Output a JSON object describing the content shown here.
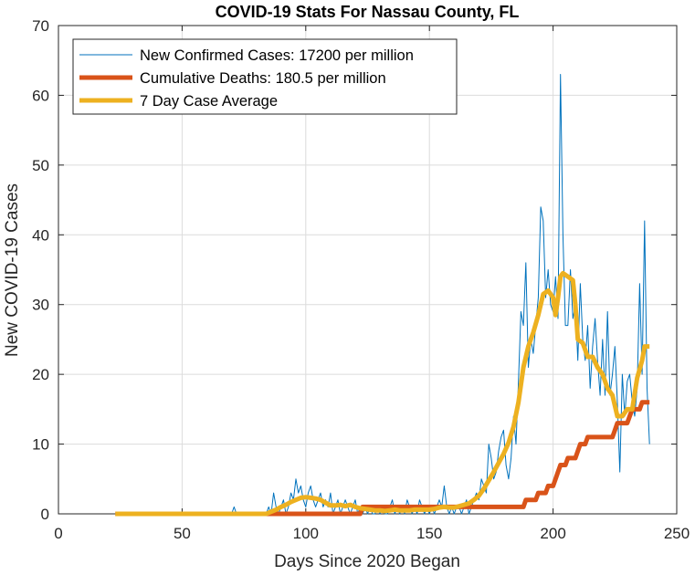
{
  "chart_data": {
    "type": "line",
    "title": "COVID-19 Stats For Nassau County, FL",
    "xlabel": "Days Since 2020 Began",
    "ylabel": "New COVID-19 Cases",
    "xlim": [
      0,
      250
    ],
    "ylim": [
      0,
      70
    ],
    "x_ticks": [
      0,
      50,
      100,
      150,
      200,
      250
    ],
    "y_ticks": [
      0,
      10,
      20,
      30,
      40,
      50,
      60,
      70
    ],
    "grid": true,
    "legend_position": "top-left",
    "series": [
      {
        "name": "New Confirmed Cases: 17200 per million",
        "color": "#0072BD",
        "style": "thin",
        "points": [
          [
            23,
            0
          ],
          [
            60,
            0
          ],
          [
            70,
            0
          ],
          [
            71,
            1
          ],
          [
            72,
            0
          ],
          [
            80,
            0
          ],
          [
            84,
            0
          ],
          [
            85,
            1
          ],
          [
            86,
            0
          ],
          [
            87,
            3
          ],
          [
            88,
            1
          ],
          [
            89,
            0
          ],
          [
            90,
            1
          ],
          [
            91,
            2
          ],
          [
            92,
            0
          ],
          [
            93,
            1
          ],
          [
            94,
            3
          ],
          [
            95,
            2
          ],
          [
            96,
            5
          ],
          [
            97,
            3
          ],
          [
            98,
            4
          ],
          [
            99,
            2
          ],
          [
            100,
            1
          ],
          [
            101,
            3
          ],
          [
            102,
            4
          ],
          [
            103,
            2
          ],
          [
            104,
            1
          ],
          [
            105,
            2
          ],
          [
            106,
            3
          ],
          [
            107,
            1
          ],
          [
            108,
            2
          ],
          [
            109,
            1
          ],
          [
            110,
            3
          ],
          [
            111,
            0
          ],
          [
            112,
            1
          ],
          [
            113,
            2
          ],
          [
            114,
            0
          ],
          [
            115,
            1
          ],
          [
            116,
            2
          ],
          [
            117,
            1
          ],
          [
            118,
            0
          ],
          [
            119,
            1
          ],
          [
            120,
            2
          ],
          [
            121,
            0
          ],
          [
            122,
            1
          ],
          [
            123,
            0
          ],
          [
            124,
            1
          ],
          [
            125,
            0
          ],
          [
            126,
            1
          ],
          [
            127,
            0
          ],
          [
            128,
            0
          ],
          [
            129,
            1
          ],
          [
            130,
            0
          ],
          [
            131,
            1
          ],
          [
            132,
            0
          ],
          [
            133,
            0
          ],
          [
            134,
            1
          ],
          [
            135,
            2
          ],
          [
            136,
            0
          ],
          [
            137,
            1
          ],
          [
            138,
            0
          ],
          [
            139,
            1
          ],
          [
            140,
            0
          ],
          [
            141,
            2
          ],
          [
            142,
            1
          ],
          [
            143,
            0
          ],
          [
            144,
            1
          ],
          [
            145,
            0
          ],
          [
            146,
            2
          ],
          [
            147,
            1
          ],
          [
            148,
            0
          ],
          [
            149,
            1
          ],
          [
            150,
            0
          ],
          [
            151,
            1
          ],
          [
            152,
            0
          ],
          [
            153,
            1
          ],
          [
            154,
            2
          ],
          [
            155,
            1
          ],
          [
            156,
            4
          ],
          [
            157,
            1
          ],
          [
            158,
            0
          ],
          [
            159,
            1
          ],
          [
            160,
            0
          ],
          [
            161,
            1
          ],
          [
            162,
            1
          ],
          [
            163,
            0
          ],
          [
            164,
            1
          ],
          [
            165,
            2
          ],
          [
            166,
            0
          ],
          [
            167,
            1
          ],
          [
            168,
            2
          ],
          [
            169,
            3
          ],
          [
            170,
            2
          ],
          [
            171,
            5
          ],
          [
            172,
            4
          ],
          [
            173,
            3
          ],
          [
            174,
            10
          ],
          [
            175,
            8
          ],
          [
            176,
            5
          ],
          [
            177,
            6
          ],
          [
            178,
            9
          ],
          [
            179,
            11
          ],
          [
            180,
            12
          ],
          [
            181,
            7
          ],
          [
            182,
            5
          ],
          [
            183,
            8
          ],
          [
            184,
            14
          ],
          [
            185,
            10
          ],
          [
            186,
            19
          ],
          [
            187,
            29
          ],
          [
            188,
            27
          ],
          [
            189,
            36
          ],
          [
            190,
            21
          ],
          [
            191,
            25
          ],
          [
            192,
            23
          ],
          [
            193,
            27
          ],
          [
            194,
            31
          ],
          [
            195,
            44
          ],
          [
            196,
            42
          ],
          [
            197,
            31
          ],
          [
            198,
            35
          ],
          [
            199,
            30
          ],
          [
            200,
            29
          ],
          [
            201,
            34
          ],
          [
            202,
            28
          ],
          [
            203,
            63
          ],
          [
            204,
            40
          ],
          [
            205,
            27
          ],
          [
            206,
            27
          ],
          [
            207,
            35
          ],
          [
            208,
            28
          ],
          [
            209,
            30
          ],
          [
            210,
            22
          ],
          [
            211,
            33
          ],
          [
            212,
            25
          ],
          [
            213,
            22
          ],
          [
            214,
            27
          ],
          [
            215,
            18
          ],
          [
            216,
            24
          ],
          [
            217,
            28
          ],
          [
            218,
            22
          ],
          [
            219,
            17
          ],
          [
            220,
            25
          ],
          [
            221,
            17
          ],
          [
            222,
            29
          ],
          [
            223,
            17
          ],
          [
            224,
            20
          ],
          [
            225,
            24
          ],
          [
            226,
            16
          ],
          [
            227,
            6
          ],
          [
            228,
            20
          ],
          [
            229,
            14
          ],
          [
            230,
            19
          ],
          [
            231,
            20
          ],
          [
            232,
            16
          ],
          [
            233,
            14
          ],
          [
            234,
            18
          ],
          [
            235,
            33
          ],
          [
            236,
            20
          ],
          [
            237,
            42
          ],
          [
            238,
            18
          ],
          [
            239,
            10
          ]
        ]
      },
      {
        "name": "Cumulative Deaths: 180.5 per million",
        "color": "#D95319",
        "style": "thick",
        "points": [
          [
            23,
            0
          ],
          [
            80,
            0
          ],
          [
            122,
            0
          ],
          [
            123,
            1
          ],
          [
            185,
            1
          ],
          [
            188,
            1
          ],
          [
            189,
            2
          ],
          [
            193,
            2
          ],
          [
            194,
            3
          ],
          [
            197,
            3
          ],
          [
            198,
            4
          ],
          [
            200,
            4
          ],
          [
            201,
            5
          ],
          [
            202,
            6
          ],
          [
            203,
            7
          ],
          [
            205,
            7
          ],
          [
            206,
            8
          ],
          [
            209,
            8
          ],
          [
            210,
            9
          ],
          [
            211,
            10
          ],
          [
            213,
            10
          ],
          [
            214,
            11
          ],
          [
            224,
            11
          ],
          [
            225,
            12
          ],
          [
            226,
            13
          ],
          [
            230,
            13
          ],
          [
            231,
            14
          ],
          [
            232,
            15
          ],
          [
            235,
            15
          ],
          [
            236,
            16
          ],
          [
            239,
            16
          ]
        ]
      },
      {
        "name": "7 Day Case Average",
        "color": "#EDB120",
        "style": "thick",
        "points": [
          [
            23,
            0
          ],
          [
            84,
            0
          ],
          [
            86,
            0.3
          ],
          [
            88,
            0.6
          ],
          [
            90,
            1
          ],
          [
            92,
            1.3
          ],
          [
            94,
            1.7
          ],
          [
            96,
            2
          ],
          [
            98,
            2.3
          ],
          [
            100,
            2.4
          ],
          [
            102,
            2.3
          ],
          [
            104,
            2.2
          ],
          [
            106,
            2
          ],
          [
            108,
            1.6
          ],
          [
            110,
            1.2
          ],
          [
            112,
            1.2
          ],
          [
            114,
            1.3
          ],
          [
            116,
            1.1
          ],
          [
            118,
            1.3
          ],
          [
            120,
            1
          ],
          [
            122,
            0.8
          ],
          [
            124,
            0.7
          ],
          [
            126,
            0.6
          ],
          [
            128,
            0.5
          ],
          [
            130,
            0.5
          ],
          [
            132,
            0.4
          ],
          [
            134,
            0.5
          ],
          [
            136,
            0.6
          ],
          [
            138,
            0.5
          ],
          [
            140,
            0.5
          ],
          [
            142,
            0.5
          ],
          [
            144,
            0.6
          ],
          [
            146,
            0.6
          ],
          [
            148,
            0.6
          ],
          [
            150,
            0.6
          ],
          [
            152,
            0.7
          ],
          [
            154,
            0.9
          ],
          [
            156,
            1
          ],
          [
            158,
            0.9
          ],
          [
            160,
            0.9
          ],
          [
            162,
            1.1
          ],
          [
            164,
            1.3
          ],
          [
            166,
            1.5
          ],
          [
            168,
            2
          ],
          [
            170,
            2.6
          ],
          [
            172,
            3.6
          ],
          [
            174,
            4.8
          ],
          [
            176,
            6
          ],
          [
            178,
            7.3
          ],
          [
            180,
            8.6
          ],
          [
            182,
            10.2
          ],
          [
            184,
            12.5
          ],
          [
            186,
            16
          ],
          [
            188,
            21
          ],
          [
            190,
            24
          ],
          [
            192,
            26
          ],
          [
            194,
            28.5
          ],
          [
            196,
            31.5
          ],
          [
            198,
            32
          ],
          [
            200,
            31
          ],
          [
            201,
            28.5
          ],
          [
            202,
            31
          ],
          [
            203,
            34
          ],
          [
            204,
            34.5
          ],
          [
            206,
            34
          ],
          [
            208,
            33.5
          ],
          [
            209,
            30
          ],
          [
            210,
            25
          ],
          [
            212,
            24.5
          ],
          [
            214,
            22.5
          ],
          [
            216,
            22.5
          ],
          [
            218,
            21
          ],
          [
            220,
            20
          ],
          [
            222,
            18
          ],
          [
            224,
            17
          ],
          [
            226,
            14
          ],
          [
            228,
            14
          ],
          [
            230,
            15
          ],
          [
            232,
            15
          ],
          [
            234,
            19.5
          ],
          [
            236,
            22
          ],
          [
            237,
            24
          ],
          [
            239,
            24
          ]
        ]
      }
    ]
  }
}
